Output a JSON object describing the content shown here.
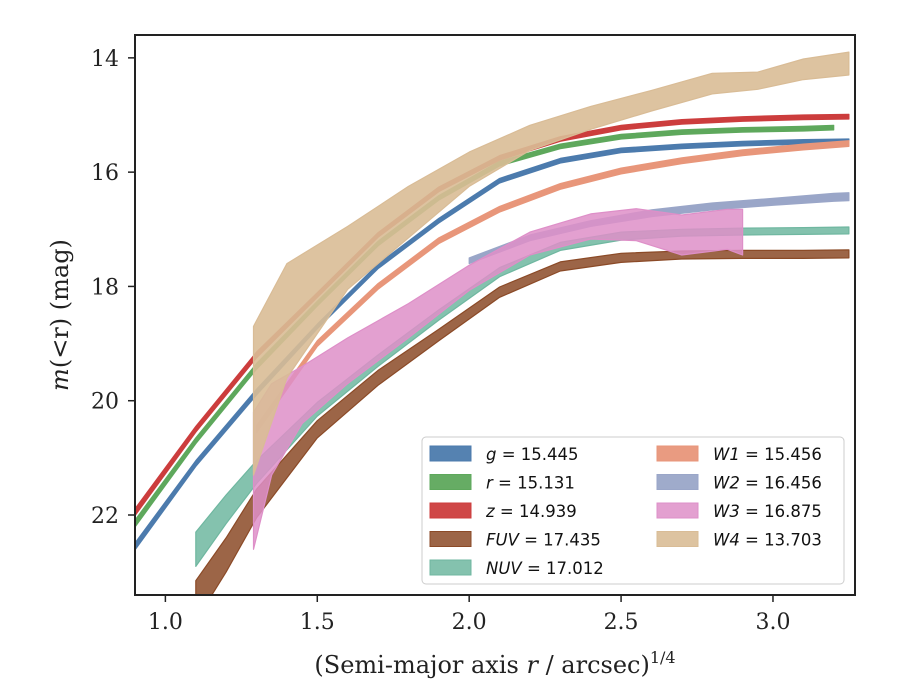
{
  "chart_data": {
    "type": "area",
    "xlabel_main": "(Semi-major axis ",
    "xlabel_var": "r",
    "xlabel_rest": " / arcsec)",
    "xlabel_exp": "1/4",
    "ylabel_main": "m",
    "ylabel_var": "(<r)",
    "ylabel_unit": " (mag)",
    "xlim": [
      0.9,
      3.27
    ],
    "ylim": [
      23.4,
      13.6
    ],
    "y_inverted": true,
    "xticks": [
      {
        "v": 1.0,
        "label": "1.0"
      },
      {
        "v": 1.5,
        "label": "1.5"
      },
      {
        "v": 2.0,
        "label": "2.0"
      },
      {
        "v": 2.5,
        "label": "2.5"
      },
      {
        "v": 3.0,
        "label": "3.0"
      }
    ],
    "yticks": [
      {
        "v": 14,
        "label": "14"
      },
      {
        "v": 16,
        "label": "16"
      },
      {
        "v": 18,
        "label": "18"
      },
      {
        "v": 20,
        "label": "20"
      },
      {
        "v": 22,
        "label": "22"
      }
    ],
    "legend_position": "lower-right",
    "series": [
      {
        "id": "g",
        "name": "g",
        "value": "15.445",
        "color": "#4c7bad",
        "x": [
          0.9,
          1.1,
          1.3,
          1.5,
          1.7,
          1.9,
          2.1,
          2.3,
          2.5,
          2.7,
          2.9,
          3.1,
          3.25
        ],
        "y": [
          22.55,
          21.1,
          19.85,
          18.7,
          17.65,
          16.85,
          16.15,
          15.8,
          15.62,
          15.55,
          15.5,
          15.47,
          15.46
        ],
        "hw": [
          0.06,
          0.05,
          0.05,
          0.04,
          0.04,
          0.04,
          0.04,
          0.04,
          0.04,
          0.04,
          0.04,
          0.04,
          0.04
        ]
      },
      {
        "id": "r",
        "name": "r",
        "value": "15.131",
        "color": "#5ea85c",
        "x": [
          0.9,
          1.1,
          1.3,
          1.5,
          1.7,
          1.9,
          2.1,
          2.3,
          2.5,
          2.7,
          2.9,
          3.1,
          3.2
        ],
        "y": [
          22.15,
          20.7,
          19.4,
          18.3,
          17.25,
          16.45,
          15.85,
          15.55,
          15.38,
          15.3,
          15.26,
          15.24,
          15.22
        ],
        "hw": [
          0.06,
          0.05,
          0.05,
          0.04,
          0.04,
          0.04,
          0.04,
          0.04,
          0.04,
          0.04,
          0.04,
          0.04,
          0.04
        ]
      },
      {
        "id": "z",
        "name": "z",
        "value": "14.939",
        "color": "#cc3d3d",
        "x": [
          0.9,
          1.1,
          1.3,
          1.5,
          1.7,
          1.9,
          2.1,
          2.3,
          2.5,
          2.7,
          2.9,
          3.1,
          3.25
        ],
        "y": [
          21.95,
          20.5,
          19.2,
          18.15,
          17.1,
          16.3,
          15.75,
          15.42,
          15.22,
          15.12,
          15.07,
          15.04,
          15.03
        ],
        "hw": [
          0.06,
          0.05,
          0.05,
          0.04,
          0.04,
          0.04,
          0.04,
          0.04,
          0.04,
          0.04,
          0.04,
          0.04,
          0.04
        ]
      },
      {
        "id": "fuv",
        "name": "FUV",
        "value": "17.435",
        "color": "#8b4a27",
        "opacity": 0.85,
        "x": [
          1.1,
          1.2,
          1.3,
          1.5,
          1.7,
          1.9,
          2.1,
          2.3,
          2.5,
          2.7,
          2.9,
          3.1,
          3.25
        ],
        "y": [
          23.5,
          22.7,
          21.8,
          20.5,
          19.6,
          18.85,
          18.1,
          17.65,
          17.5,
          17.45,
          17.44,
          17.44,
          17.43
        ],
        "hw": [
          0.35,
          0.3,
          0.25,
          0.15,
          0.13,
          0.1,
          0.09,
          0.08,
          0.08,
          0.07,
          0.07,
          0.07,
          0.07
        ]
      },
      {
        "id": "nuv",
        "name": "NUV",
        "value": "17.012",
        "color": "#6fb7a0",
        "opacity": 0.85,
        "x": [
          1.1,
          1.2,
          1.3,
          1.5,
          1.7,
          1.9,
          2.1,
          2.3,
          2.5,
          2.7,
          2.9,
          3.1,
          3.25
        ],
        "y": [
          22.6,
          21.9,
          21.25,
          20.15,
          19.3,
          18.5,
          17.75,
          17.3,
          17.12,
          17.06,
          17.04,
          17.03,
          17.02
        ],
        "hw": [
          0.3,
          0.25,
          0.2,
          0.12,
          0.1,
          0.09,
          0.08,
          0.07,
          0.07,
          0.06,
          0.06,
          0.06,
          0.06
        ]
      },
      {
        "id": "w1",
        "name": "W1",
        "value": "15.456",
        "color": "#e8967a",
        "x": [
          1.3,
          1.5,
          1.7,
          1.9,
          2.1,
          2.3,
          2.5,
          2.7,
          2.9,
          3.1,
          3.25
        ],
        "y": [
          20.5,
          19.0,
          18.0,
          17.2,
          16.65,
          16.25,
          15.98,
          15.8,
          15.66,
          15.56,
          15.5
        ],
        "hw": [
          0.06,
          0.05,
          0.05,
          0.05,
          0.05,
          0.05,
          0.05,
          0.05,
          0.05,
          0.05,
          0.05
        ]
      },
      {
        "id": "w2",
        "name": "W2",
        "value": "16.456",
        "color": "#9aa6c8",
        "x": [
          2.0,
          2.2,
          2.4,
          2.6,
          2.8,
          3.0,
          3.2,
          3.25
        ],
        "y": [
          17.55,
          17.15,
          16.9,
          16.72,
          16.6,
          16.52,
          16.44,
          16.43
        ],
        "hw": [
          0.05,
          0.05,
          0.05,
          0.06,
          0.06,
          0.06,
          0.07,
          0.07
        ]
      },
      {
        "id": "w3",
        "name": "W3",
        "value": "16.875",
        "color": "#de8fc8",
        "opacity": 0.85,
        "x": [
          1.29,
          1.35,
          1.45,
          1.6,
          1.8,
          2.0,
          2.2,
          2.4,
          2.55,
          2.7,
          2.85,
          2.9
        ],
        "y": [
          21.4,
          20.5,
          19.9,
          19.3,
          18.6,
          17.85,
          17.25,
          16.95,
          16.92,
          17.1,
          17.0,
          17.05
        ],
        "hw": [
          1.2,
          0.8,
          0.5,
          0.4,
          0.3,
          0.22,
          0.2,
          0.22,
          0.28,
          0.35,
          0.35,
          0.4
        ]
      },
      {
        "id": "w4",
        "name": "W4",
        "value": "13.703",
        "color": "#d9bc96",
        "opacity": 0.9,
        "x": [
          1.29,
          1.4,
          1.6,
          1.8,
          2.0,
          2.2,
          2.4,
          2.6,
          2.8,
          2.95,
          3.1,
          3.25
        ],
        "y": [
          20.0,
          18.6,
          17.5,
          16.7,
          15.95,
          15.4,
          15.05,
          14.75,
          14.45,
          14.4,
          14.2,
          14.1
        ],
        "hw": [
          1.3,
          1.0,
          0.55,
          0.45,
          0.3,
          0.22,
          0.2,
          0.18,
          0.18,
          0.15,
          0.18,
          0.2
        ]
      }
    ]
  }
}
